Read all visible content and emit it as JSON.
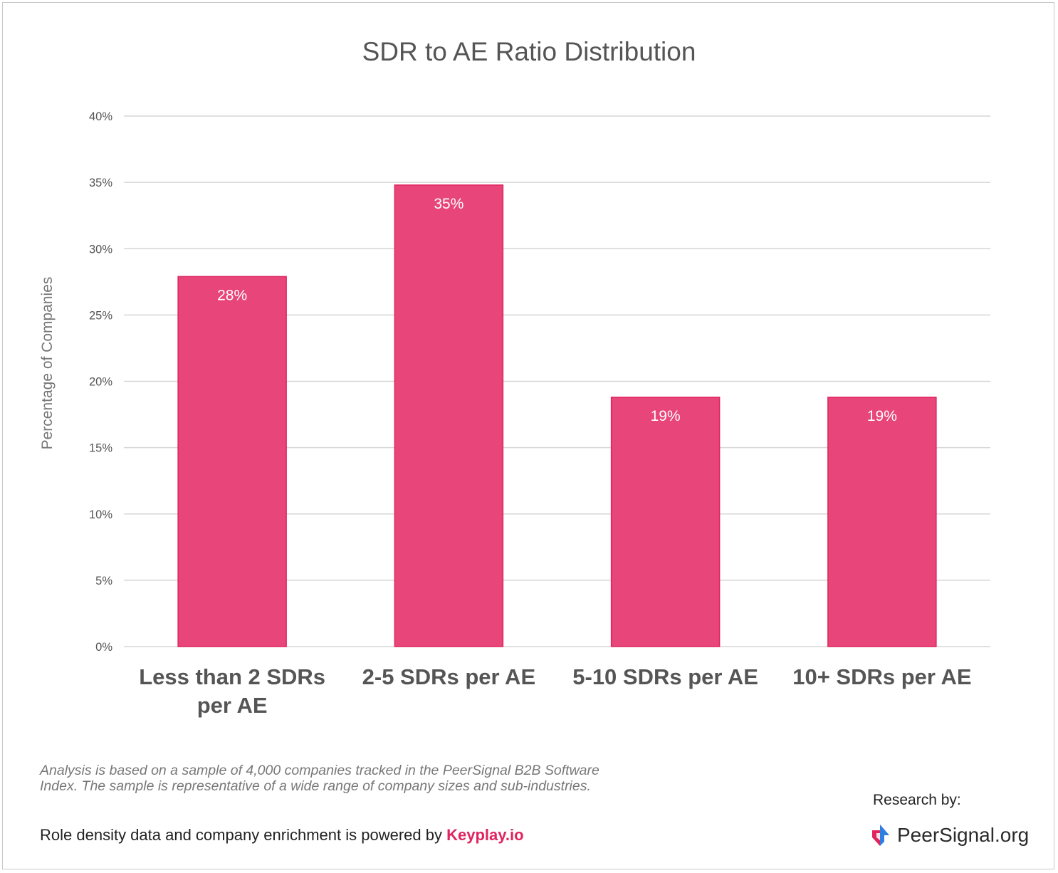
{
  "chart_data": {
    "type": "bar",
    "title": "SDR to AE Ratio Distribution",
    "ylabel": "Percentage of Companies",
    "xlabel": "",
    "categories": [
      [
        "Less than 2 SDRs",
        "per AE"
      ],
      [
        "2-5 SDRs per AE"
      ],
      [
        "5-10 SDRs per AE"
      ],
      [
        "10+ SDRs per AE"
      ]
    ],
    "values": [
      27.9,
      34.8,
      18.8,
      18.8
    ],
    "data_labels": [
      "28%",
      "35%",
      "19%",
      "19%"
    ],
    "ylim": [
      0,
      40
    ],
    "yticks": [
      0,
      5,
      10,
      15,
      20,
      25,
      30,
      35,
      40
    ],
    "ytick_labels": [
      "0%",
      "5%",
      "10%",
      "15%",
      "20%",
      "25%",
      "30%",
      "35%",
      "40%"
    ],
    "grid": true,
    "legend": "none",
    "bar_color": "#e8457a",
    "bar_edge_color": "#e0245e"
  },
  "footer": {
    "note": "Analysis is based on a sample of 4,000 companies tracked in the PeerSignal B2B Software Index. The sample is representative of a wide range of company sizes and sub-industries.",
    "powered_text": "Role density data and company enrichment is powered by ",
    "powered_link": "Keyplay.io",
    "research_label": "Research by:",
    "brand_name": "PeerSignal.org",
    "brand_logo_icon": "peersignal-logo-icon"
  }
}
